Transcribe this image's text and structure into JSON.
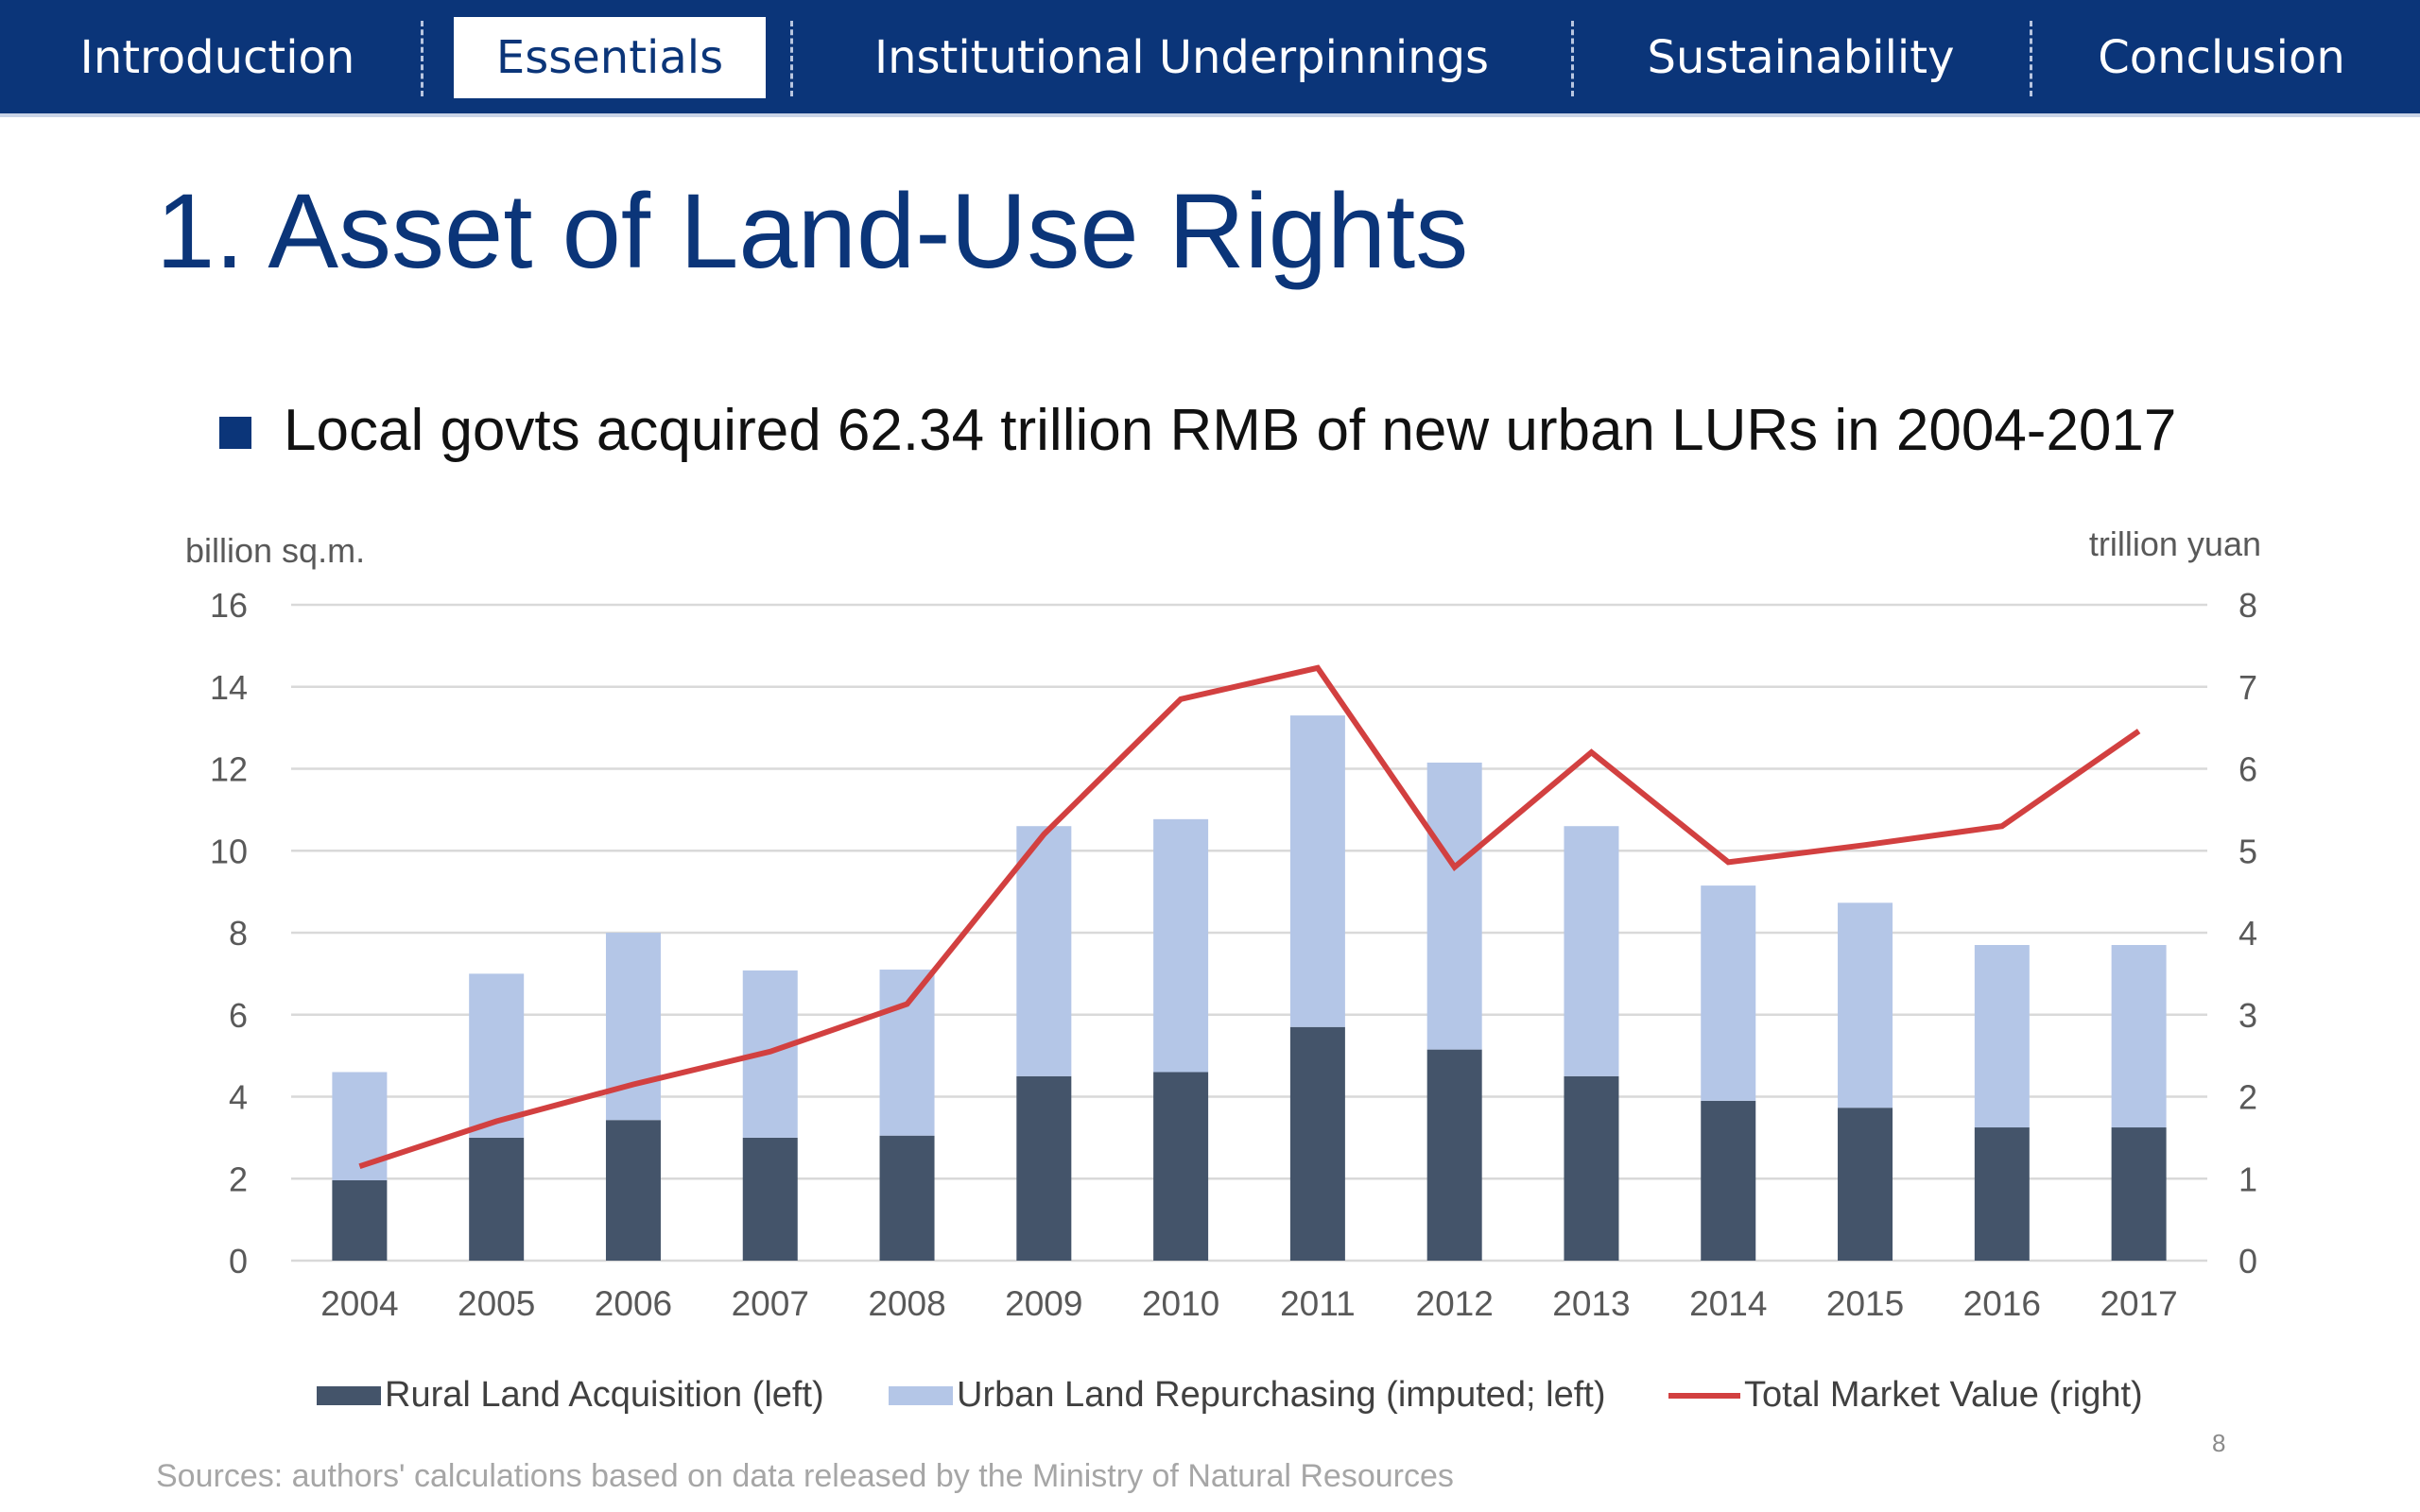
{
  "nav": {
    "items": [
      {
        "label": "Introduction",
        "active": false
      },
      {
        "label": "Essentials",
        "active": true
      },
      {
        "label": "Institutional Underpinnings",
        "active": false
      },
      {
        "label": "Sustainability",
        "active": false
      },
      {
        "label": "Conclusion",
        "active": false
      }
    ]
  },
  "slide": {
    "title": "1. Asset of Land-Use Rights",
    "bullet": "Local govts acquired 62.34 trillion RMB of new urban LURs in 2004-2017",
    "source": "Sources: authors' calculations based on data released by the Ministry of Natural Resources",
    "page_number": "8"
  },
  "colors": {
    "nav_bg": "#0b3579",
    "rural": "#44546a",
    "urban": "#b4c6e7",
    "line": "#d24040",
    "grid": "#d9d9d9"
  },
  "chart_data": {
    "type": "bar",
    "stacked": true,
    "title": "",
    "xlabel": "",
    "ylabel": "billion sq.m.",
    "y2label": "trillion yuan",
    "categories": [
      "2004",
      "2005",
      "2006",
      "2007",
      "2008",
      "2009",
      "2010",
      "2011",
      "2012",
      "2013",
      "2014",
      "2015",
      "2016",
      "2017"
    ],
    "ylim": [
      0,
      16
    ],
    "y2lim": [
      0,
      8
    ],
    "yticks": [
      0,
      2,
      4,
      6,
      8,
      10,
      12,
      14,
      16
    ],
    "y2ticks": [
      0,
      1,
      2,
      3,
      4,
      5,
      6,
      7,
      8
    ],
    "grid": true,
    "legend_position": "bottom",
    "series": [
      {
        "name": "Rural Land Acquisition (left)",
        "type": "bar",
        "axis": "left",
        "values": [
          1.96,
          3.0,
          3.43,
          3.0,
          3.05,
          4.5,
          4.6,
          5.7,
          5.15,
          4.5,
          3.9,
          3.73,
          3.25,
          3.25
        ]
      },
      {
        "name": "Urban Land Repurchasing (imputed; left)",
        "type": "bar",
        "axis": "left",
        "values": [
          2.64,
          4.0,
          4.57,
          4.08,
          4.05,
          6.1,
          6.17,
          7.6,
          7.0,
          6.1,
          5.25,
          5.0,
          4.45,
          4.45
        ]
      },
      {
        "name": "Total Market Value (right)",
        "type": "line",
        "axis": "right",
        "values": [
          1.15,
          1.7,
          2.15,
          2.55,
          3.13,
          5.2,
          6.85,
          7.23,
          4.8,
          6.2,
          4.86,
          5.07,
          5.3,
          6.46
        ]
      }
    ]
  }
}
